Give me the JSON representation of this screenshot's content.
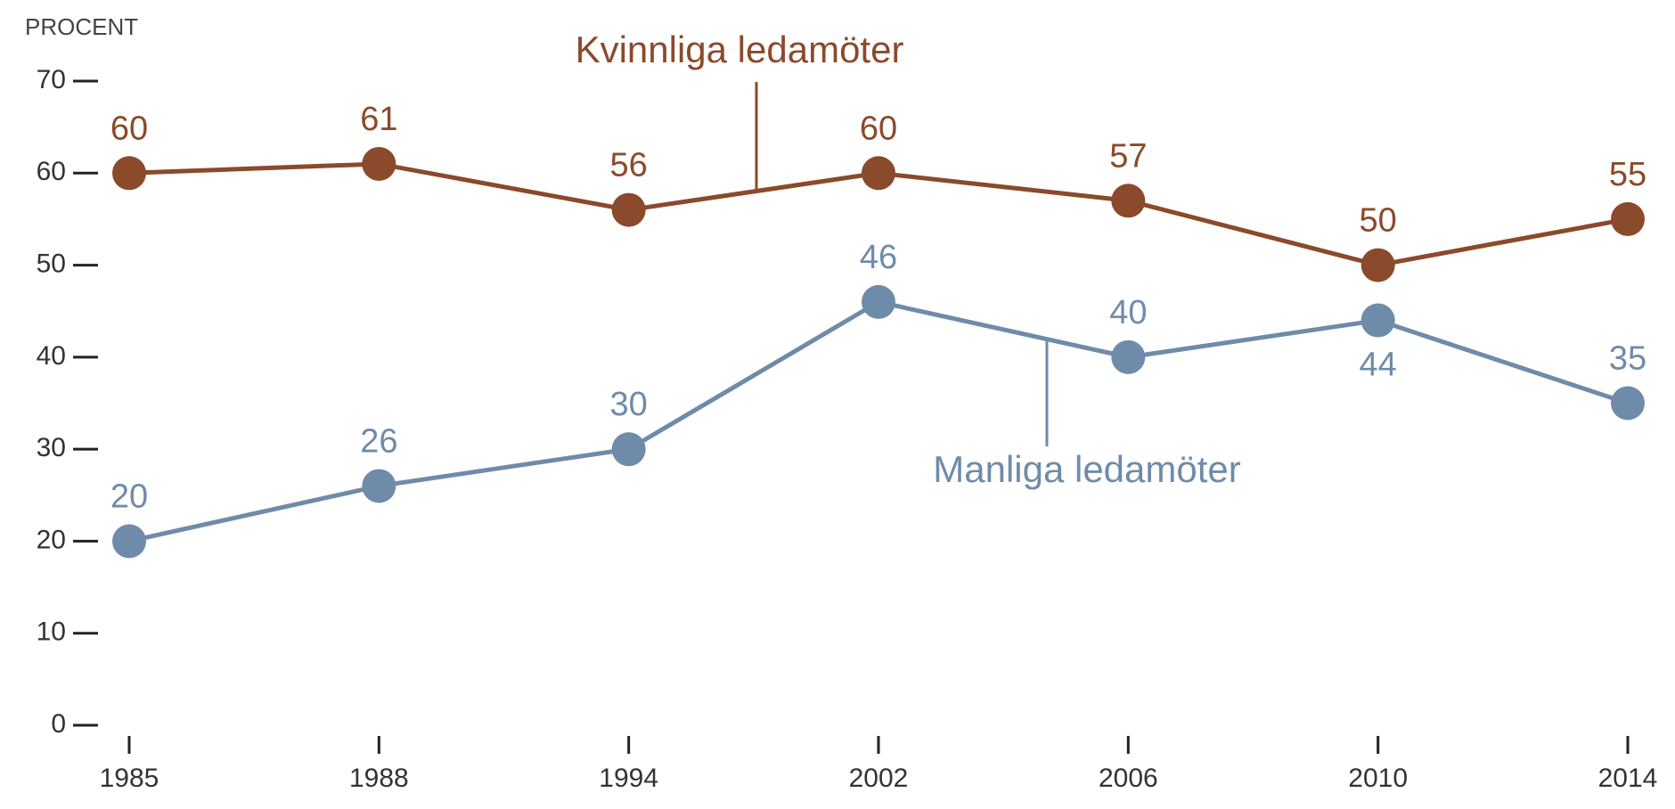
{
  "chart_data": {
    "type": "line",
    "y_axis_label": "PROCENT",
    "categories": [
      "1985",
      "1988",
      "1994",
      "2002",
      "2006",
      "2010",
      "2014"
    ],
    "series": [
      {
        "name": "Kvinnliga ledamöter",
        "color": "#8b4a2b",
        "values": [
          60,
          61,
          56,
          60,
          57,
          50,
          55
        ]
      },
      {
        "name": "Manliga ledamöter",
        "color": "#6f8baa",
        "values": [
          20,
          26,
          30,
          46,
          40,
          44,
          35
        ]
      }
    ],
    "ylim": [
      0,
      70
    ],
    "yticks": [
      0,
      10,
      20,
      30,
      40,
      50,
      60,
      70
    ],
    "data_labels": true
  }
}
